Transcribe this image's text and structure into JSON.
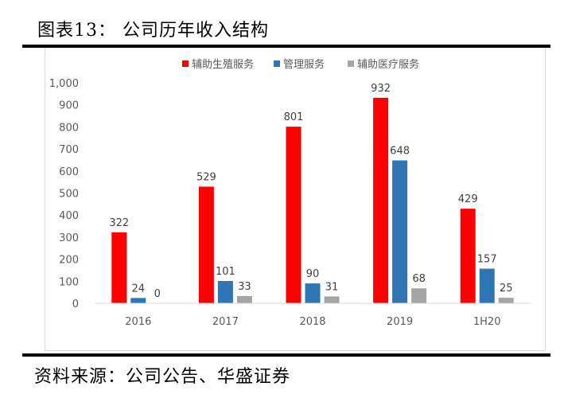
{
  "figure_title": "图表13：  公司历年收入结构",
  "source_note": "资料来源：公司公告、华盛证券",
  "chart_data": {
    "type": "bar",
    "title": "",
    "xlabel": "",
    "ylabel": "",
    "categories": [
      "2016",
      "2017",
      "2018",
      "2019",
      "1H20"
    ],
    "series": [
      {
        "name": "辅助生殖服务",
        "color": "#ff0000",
        "values": [
          322,
          529,
          801,
          932,
          429
        ]
      },
      {
        "name": "管理服务",
        "color": "#2e75b6",
        "values": [
          24,
          101,
          90,
          648,
          157
        ]
      },
      {
        "name": "辅助医疗服务",
        "color": "#a5a5a5",
        "values": [
          0,
          33,
          31,
          68,
          25
        ]
      }
    ],
    "ylim": [
      0,
      1000
    ],
    "yticks": [
      0,
      100,
      200,
      300,
      400,
      500,
      600,
      700,
      800,
      900,
      1000
    ],
    "ytick_labels": [
      "0",
      "100",
      "200",
      "300",
      "400",
      "500",
      "600",
      "700",
      "800",
      "900",
      "1,000"
    ],
    "grid": false,
    "legend_position": "top",
    "data_labels": true
  }
}
